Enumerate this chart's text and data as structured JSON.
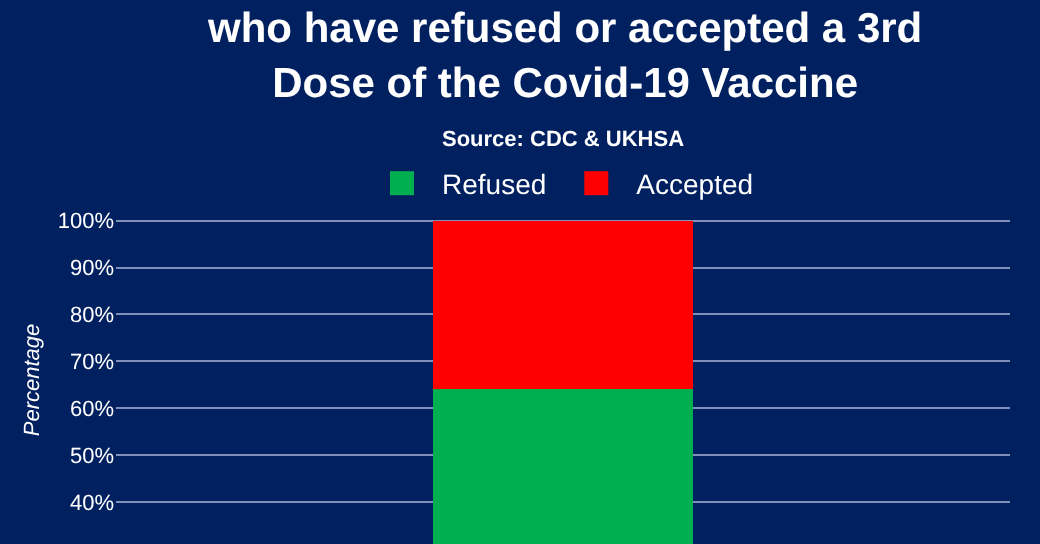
{
  "chart_data": {
    "type": "bar",
    "title": "who have refused or accepted a 3rd\nDose of the Covid-19 Vaccine",
    "annotations": [
      "Source: CDC & UKHSA"
    ],
    "ylabel": "Percentage",
    "categories": [
      null
    ],
    "stacked": true,
    "series": [
      {
        "name": "Refused",
        "color": "#00b050",
        "values": [
          64
        ]
      },
      {
        "name": "Accepted",
        "color": "#ff0000",
        "values": [
          36
        ]
      }
    ],
    "ylim": [
      31,
      101
    ],
    "yticks": [
      {
        "value": 40,
        "label": "40%"
      },
      {
        "value": 50,
        "label": "50%"
      },
      {
        "value": 60,
        "label": "60%"
      },
      {
        "value": 70,
        "label": "70%"
      },
      {
        "value": 80,
        "label": "80%"
      },
      {
        "value": 90,
        "label": "90%"
      },
      {
        "value": 100,
        "label": "100%"
      }
    ],
    "grid": "y",
    "legend": "top"
  }
}
